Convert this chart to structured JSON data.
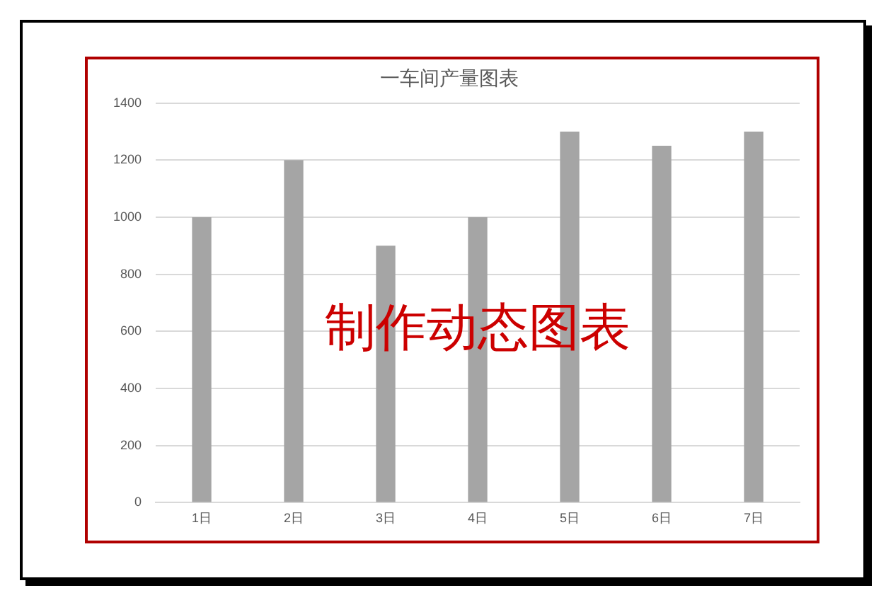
{
  "chart_data": {
    "type": "bar",
    "title": "一车间产量图表",
    "categories": [
      "1日",
      "2日",
      "3日",
      "4日",
      "5日",
      "6日",
      "7日"
    ],
    "values": [
      1000,
      1200,
      900,
      1000,
      1300,
      1250,
      1300
    ],
    "color": "#a5a5a5",
    "ylim": [
      0,
      1400
    ],
    "yticks": [
      0,
      200,
      400,
      600,
      800,
      1000,
      1200,
      1400
    ],
    "grid": "y",
    "legend": false,
    "annotations": [
      "制作动态图表"
    ]
  }
}
